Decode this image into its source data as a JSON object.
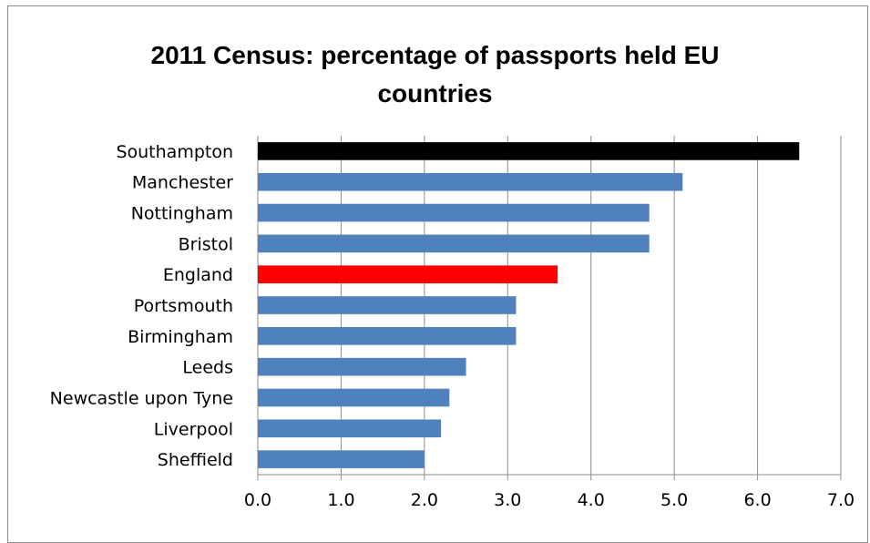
{
  "chart_data": {
    "type": "bar",
    "orientation": "horizontal",
    "title_line1": "2011 Census: percentage of passports held EU",
    "title_line2": "countries",
    "categories": [
      "Southampton",
      "Manchester",
      "Nottingham",
      "Bristol",
      "England",
      "Portsmouth",
      "Birmingham",
      "Leeds",
      "Newcastle upon Tyne",
      "Liverpool",
      "Sheffield"
    ],
    "values": [
      6.5,
      5.1,
      4.7,
      4.7,
      3.6,
      3.1,
      3.1,
      2.5,
      2.3,
      2.2,
      2.0
    ],
    "colors": [
      "#000000",
      "#4f81bd",
      "#4f81bd",
      "#4f81bd",
      "#ff0000",
      "#4f81bd",
      "#4f81bd",
      "#4f81bd",
      "#4f81bd",
      "#4f81bd",
      "#4f81bd"
    ],
    "xlim": [
      0,
      7
    ],
    "xticks": [
      "0.0",
      "1.0",
      "2.0",
      "3.0",
      "4.0",
      "5.0",
      "6.0",
      "7.0"
    ],
    "grid": "vertical",
    "legend": "none"
  }
}
